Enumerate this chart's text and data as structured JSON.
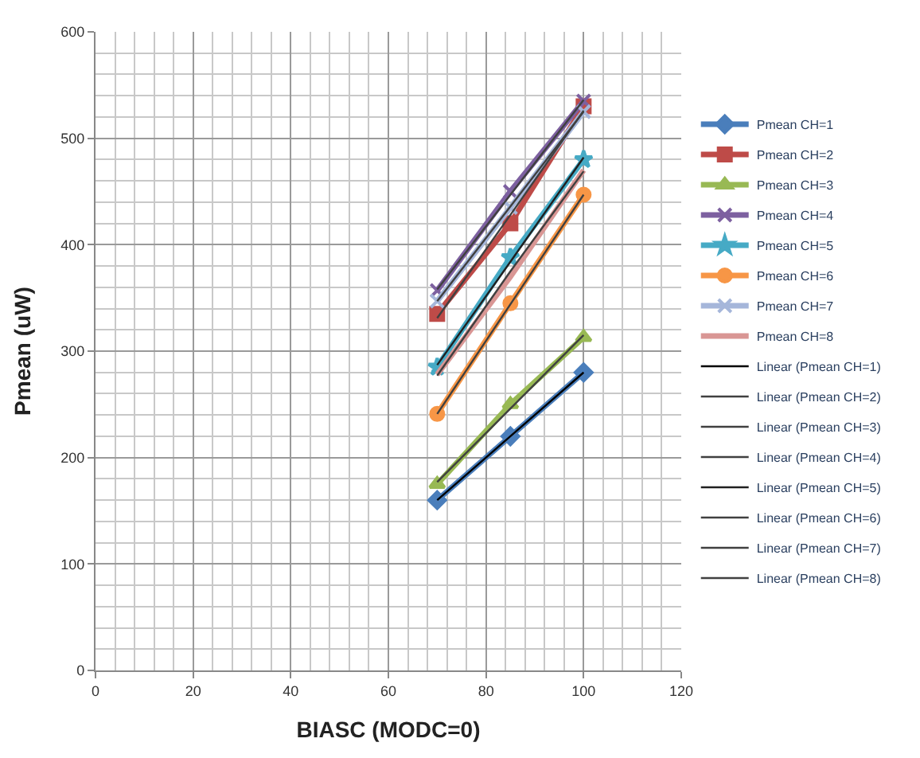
{
  "chart_data": {
    "type": "line",
    "xlabel": "BIASC (MODC=0)",
    "ylabel": "Pmean (uW)",
    "xlim": [
      0,
      120
    ],
    "xticks": [
      0,
      20,
      40,
      60,
      80,
      100,
      120
    ],
    "ylim": [
      0,
      600
    ],
    "yticks": [
      0,
      100,
      200,
      300,
      400,
      500,
      600
    ],
    "grid": true,
    "legend": "right",
    "x": [
      70,
      85,
      100
    ],
    "series": [
      {
        "name": "Pmean CH=1",
        "color": "#4a7ebb",
        "marker": "diamond",
        "values": [
          160,
          220,
          280
        ]
      },
      {
        "name": "Pmean CH=2",
        "color": "#be4b48",
        "marker": "square",
        "values": [
          335,
          420,
          530
        ]
      },
      {
        "name": "Pmean CH=3",
        "color": "#98b954",
        "marker": "triangle",
        "values": [
          175,
          250,
          313
        ]
      },
      {
        "name": "Pmean CH=4",
        "color": "#7d60a0",
        "marker": "cross",
        "values": [
          357,
          450,
          535
        ]
      },
      {
        "name": "Pmean CH=5",
        "color": "#46aac5",
        "marker": "star",
        "values": [
          285,
          388,
          480
        ]
      },
      {
        "name": "Pmean CH=6",
        "color": "#f79646",
        "marker": "circle",
        "values": [
          241,
          345,
          447
        ]
      },
      {
        "name": "Pmean CH=7",
        "color": "#a5b6da",
        "marker": "cross",
        "values": [
          347,
          435,
          525
        ]
      },
      {
        "name": "Pmean CH=8",
        "color": "#d99694",
        "marker": "none",
        "values": [
          278,
          370,
          470
        ]
      },
      {
        "name": "Linear (Pmean CH=1)",
        "color": "#000000",
        "marker": "none",
        "line_style": "solid",
        "values": [
          160,
          220,
          280
        ]
      },
      {
        "name": "Linear (Pmean CH=2)",
        "color": "#404040",
        "marker": "none",
        "line_style": "solid",
        "values": [
          331,
          428,
          526
        ]
      },
      {
        "name": "Linear (Pmean CH=3)",
        "color": "#404040",
        "marker": "none",
        "line_style": "solid",
        "values": [
          177,
          246,
          315
        ]
      },
      {
        "name": "Linear (Pmean CH=4)",
        "color": "#404040",
        "marker": "none",
        "line_style": "solid",
        "values": [
          358,
          447,
          536
        ]
      },
      {
        "name": "Linear (Pmean CH=5)",
        "color": "#202020",
        "marker": "none",
        "line_style": "solid",
        "values": [
          287,
          384,
          482
        ]
      },
      {
        "name": "Linear (Pmean CH=6)",
        "color": "#404040",
        "marker": "none",
        "line_style": "solid",
        "values": [
          241,
          344,
          447
        ]
      },
      {
        "name": "Linear (Pmean CH=7)",
        "color": "#404040",
        "marker": "none",
        "line_style": "solid",
        "values": [
          347,
          436,
          525
        ]
      },
      {
        "name": "Linear (Pmean CH=8)",
        "color": "#404040",
        "marker": "none",
        "line_style": "solid",
        "values": [
          277,
          375,
          469
        ]
      }
    ]
  }
}
